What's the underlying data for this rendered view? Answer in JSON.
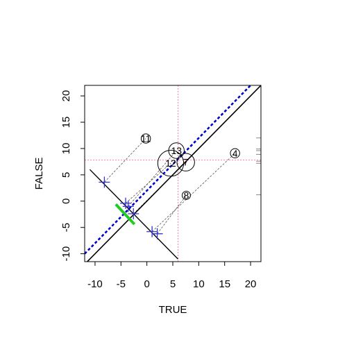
{
  "chart_data": {
    "type": "scatter",
    "xlabel": "TRUE",
    "ylabel": "FALSE",
    "xlim": [
      -12,
      22
    ],
    "ylim": [
      -11.5,
      22
    ],
    "x_ticks": [
      -10,
      -5,
      0,
      5,
      10,
      15,
      20
    ],
    "y_ticks": [
      -10,
      -5,
      0,
      5,
      10,
      15,
      20
    ],
    "grid": false,
    "legend": "none",
    "colors": {
      "cross": "#3333cc",
      "dashed_line": "#0000cc",
      "ref": "#ff7f9f",
      "segment": "#22cc22"
    },
    "reference": {
      "x": 6,
      "y": 7.8
    },
    "identity_line": {
      "from": [
        -12,
        -12
      ],
      "to": [
        22,
        22
      ]
    },
    "offset_line": {
      "from": [
        -12,
        -10
      ],
      "to": [
        20,
        22
      ]
    },
    "anti_line": {
      "from": [
        -11,
        6
      ],
      "to": [
        6,
        -11
      ]
    },
    "green_segment": {
      "from": [
        -6,
        -0.6
      ],
      "to": [
        -2.4,
        -4.4
      ]
    },
    "circles": [
      {
        "label": "11",
        "x": -0.2,
        "y": 11.9,
        "r": 0.9
      },
      {
        "label": "13",
        "x": 5.7,
        "y": 9.6,
        "r": 1.5
      },
      {
        "label": "12",
        "x": 4.6,
        "y": 7.2,
        "r": 2.5
      },
      {
        "label": "7",
        "x": 7.5,
        "y": 7.4,
        "r": 1.7
      },
      {
        "label": "4",
        "x": 17.0,
        "y": 9.1,
        "r": 0.9
      },
      {
        "label": "8",
        "x": 7.6,
        "y": 1.1,
        "r": 0.8
      }
    ],
    "crosses": [
      {
        "x": -8.2,
        "y": 3.6
      },
      {
        "x": -4.1,
        "y": -0.4
      },
      {
        "x": -3.6,
        "y": -1.0
      },
      {
        "x": -2.6,
        "y": -2.4
      },
      {
        "x": 1.0,
        "y": -5.8
      },
      {
        "x": 2.0,
        "y": -6.2
      }
    ],
    "connectors": [
      {
        "from": [
          -8.2,
          3.6
        ],
        "to": [
          -0.2,
          11.9
        ]
      },
      {
        "from": [
          -4.1,
          -0.4
        ],
        "to": [
          4.6,
          7.2
        ]
      },
      {
        "from": [
          -3.6,
          -1.0
        ],
        "to": [
          5.7,
          9.6
        ]
      },
      {
        "from": [
          -2.6,
          -2.4
        ],
        "to": [
          7.5,
          7.4
        ]
      },
      {
        "from": [
          1.0,
          -5.8
        ],
        "to": [
          17.0,
          9.1
        ]
      },
      {
        "from": [
          2.0,
          -6.2
        ],
        "to": [
          7.6,
          1.1
        ]
      }
    ],
    "right_rug": [
      9.9,
      9.6,
      8.9,
      1.2,
      12.0,
      7.6,
      7.2
    ]
  }
}
